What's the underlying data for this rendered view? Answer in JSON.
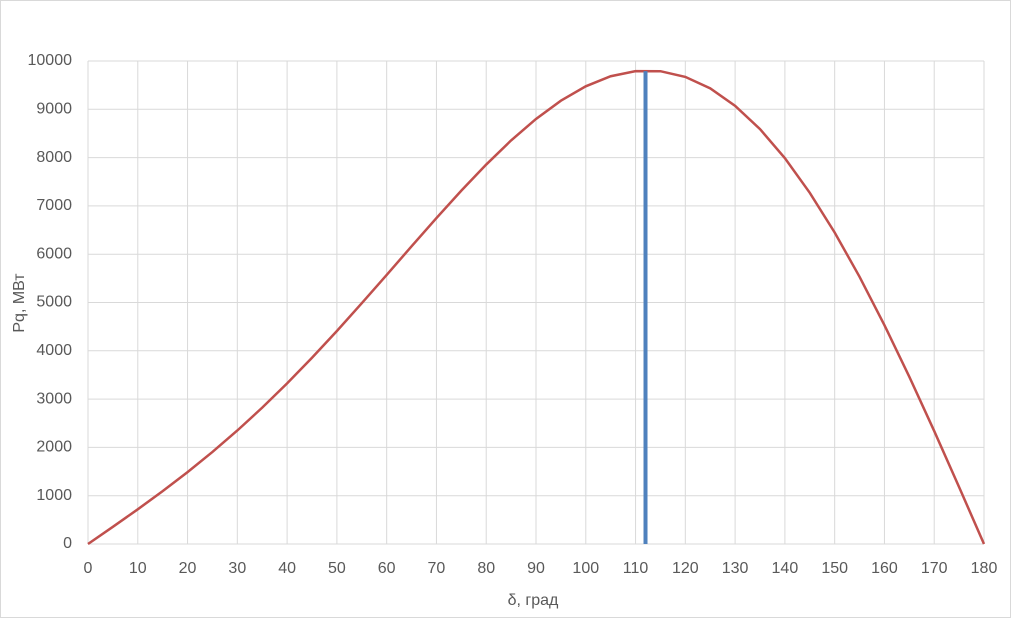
{
  "chart_data": {
    "type": "line",
    "xlabel": "δ, град",
    "ylabel": "Pq, МВт",
    "x": [
      0,
      5,
      10,
      15,
      20,
      25,
      30,
      35,
      40,
      45,
      50,
      55,
      60,
      65,
      70,
      75,
      80,
      85,
      90,
      95,
      100,
      105,
      110,
      115,
      120,
      125,
      130,
      135,
      140,
      145,
      150,
      155,
      160,
      165,
      170,
      175,
      180
    ],
    "series": [
      {
        "color": "#c0504d",
        "values": [
          0,
          356,
          718,
          1094,
          1489,
          1906,
          2350,
          2823,
          3326,
          3856,
          4410,
          4985,
          5571,
          6163,
          6748,
          7316,
          7856,
          8356,
          8800,
          9178,
          9476,
          9684,
          9790,
          9789,
          9671,
          9433,
          9072,
          8590,
          7988,
          7271,
          6450,
          5532,
          4531,
          3462,
          2338,
          1178,
          0
        ]
      },
      {
        "color": "#4f81bd",
        "x": [
          112,
          112
        ],
        "values": [
          0,
          9790
        ]
      }
    ],
    "xlim": [
      0,
      180
    ],
    "xticks": [
      0,
      10,
      20,
      30,
      40,
      50,
      60,
      70,
      80,
      90,
      100,
      110,
      120,
      130,
      140,
      150,
      160,
      170,
      180
    ],
    "ylim": [
      0,
      10000
    ],
    "yticks": [
      0,
      1000,
      2000,
      3000,
      4000,
      5000,
      6000,
      7000,
      8000,
      9000,
      10000
    ],
    "grid": true
  }
}
